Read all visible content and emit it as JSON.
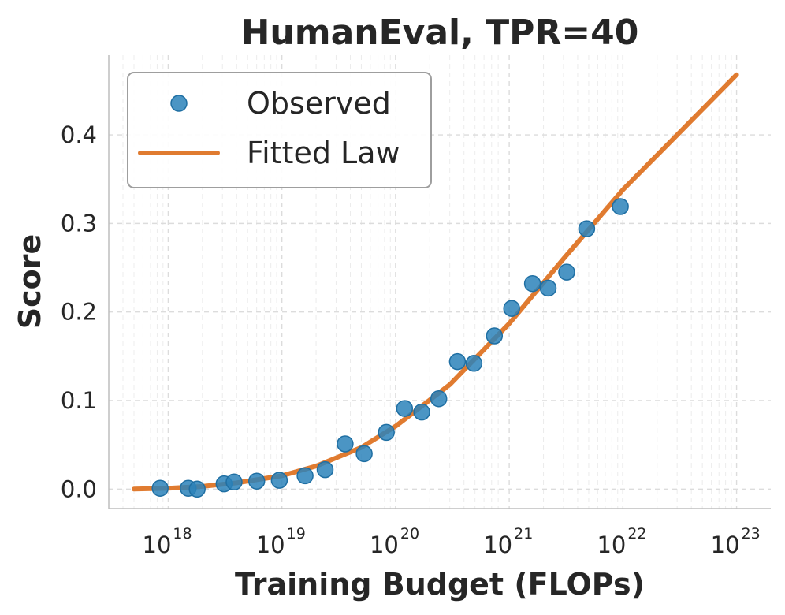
{
  "chart_data": {
    "type": "scatter",
    "title": "HumanEval, TPR=40",
    "xlabel": "Training Budget (FLOPs)",
    "ylabel": "Score",
    "xscale": "log",
    "xlim": [
      3e+17,
      2e+23
    ],
    "ylim": [
      -0.022,
      0.49
    ],
    "x_ticks": [
      {
        "base": "10",
        "exp": "18",
        "value": 1e+18
      },
      {
        "base": "10",
        "exp": "19",
        "value": 1e+19
      },
      {
        "base": "10",
        "exp": "20",
        "value": 1e+20
      },
      {
        "base": "10",
        "exp": "21",
        "value": 1e+21
      },
      {
        "base": "10",
        "exp": "22",
        "value": 1e+22
      },
      {
        "base": "10",
        "exp": "23",
        "value": 1e+23
      }
    ],
    "y_ticks": [
      {
        "label": "0.0",
        "value": 0.0
      },
      {
        "label": "0.1",
        "value": 0.1
      },
      {
        "label": "0.2",
        "value": 0.2
      },
      {
        "label": "0.3",
        "value": 0.3
      },
      {
        "label": "0.4",
        "value": 0.4
      }
    ],
    "grid": true,
    "legend_position": "top-left",
    "series": [
      {
        "name": "Observed",
        "kind": "scatter",
        "color": "#2b83ba",
        "x": [
          8.5e+17,
          1.5e+18,
          1.8e+18,
          3.1e+18,
          3.8e+18,
          6e+18,
          9.5e+18,
          1.6e+19,
          2.4e+19,
          3.6e+19,
          5.3e+19,
          8.3e+19,
          1.2e+20,
          1.7e+20,
          2.4e+20,
          3.5e+20,
          4.9e+20,
          7.4e+20,
          1.05e+21,
          1.6e+21,
          2.2e+21,
          3.2e+21,
          4.8e+21,
          9.5e+21
        ],
        "y": [
          0.001,
          0.001,
          0.0,
          0.006,
          0.008,
          0.009,
          0.01,
          0.015,
          0.022,
          0.051,
          0.04,
          0.064,
          0.091,
          0.087,
          0.102,
          0.144,
          0.142,
          0.173,
          0.204,
          0.232,
          0.227,
          0.245,
          0.294,
          0.319
        ]
      },
      {
        "name": "Fitted Law",
        "kind": "line",
        "color": "#e07b30",
        "x": [
          5e+17,
          1e+18,
          2e+18,
          4e+18,
          1e+19,
          2e+19,
          5e+19,
          1e+20,
          3e+20,
          1e+21,
          3e+21,
          1e+22,
          3e+22,
          1e+23
        ],
        "y": [
          0.0,
          0.001,
          0.003,
          0.007,
          0.015,
          0.026,
          0.047,
          0.071,
          0.118,
          0.187,
          0.26,
          0.338,
          0.4,
          0.468
        ]
      }
    ]
  }
}
